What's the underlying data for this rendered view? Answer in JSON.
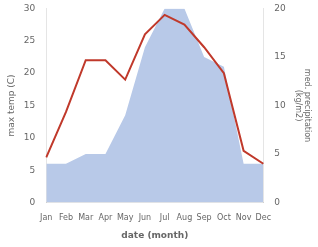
{
  "chart_data": {
    "type": "line",
    "categories": [
      "Jan",
      "Feb",
      "Mar",
      "Apr",
      "May",
      "Jun",
      "Jul",
      "Aug",
      "Sep",
      "Oct",
      "Nov",
      "Dec"
    ],
    "series": [
      {
        "type": "line",
        "color": "#c0392b",
        "values": [
          7,
          14,
          22,
          22,
          19,
          26,
          29,
          27.5,
          24,
          20,
          8,
          6
        ]
      },
      {
        "type": "area",
        "color": "#b8c9e8",
        "axis": "y2",
        "values": [
          4,
          4,
          5,
          5,
          9,
          16,
          20,
          20,
          15,
          14,
          4,
          4
        ]
      }
    ],
    "x_label": "date (month)",
    "y_label": "max temp (C)",
    "y2_label": "med. precipitation\n(kg/m2)",
    "ylim": [
      0,
      30
    ],
    "yticks": [
      0,
      5,
      10,
      15,
      20,
      25,
      30
    ],
    "y2lim": [
      0,
      20
    ],
    "y2ticks": [
      0,
      5,
      10,
      15,
      20
    ],
    "grid": false
  }
}
